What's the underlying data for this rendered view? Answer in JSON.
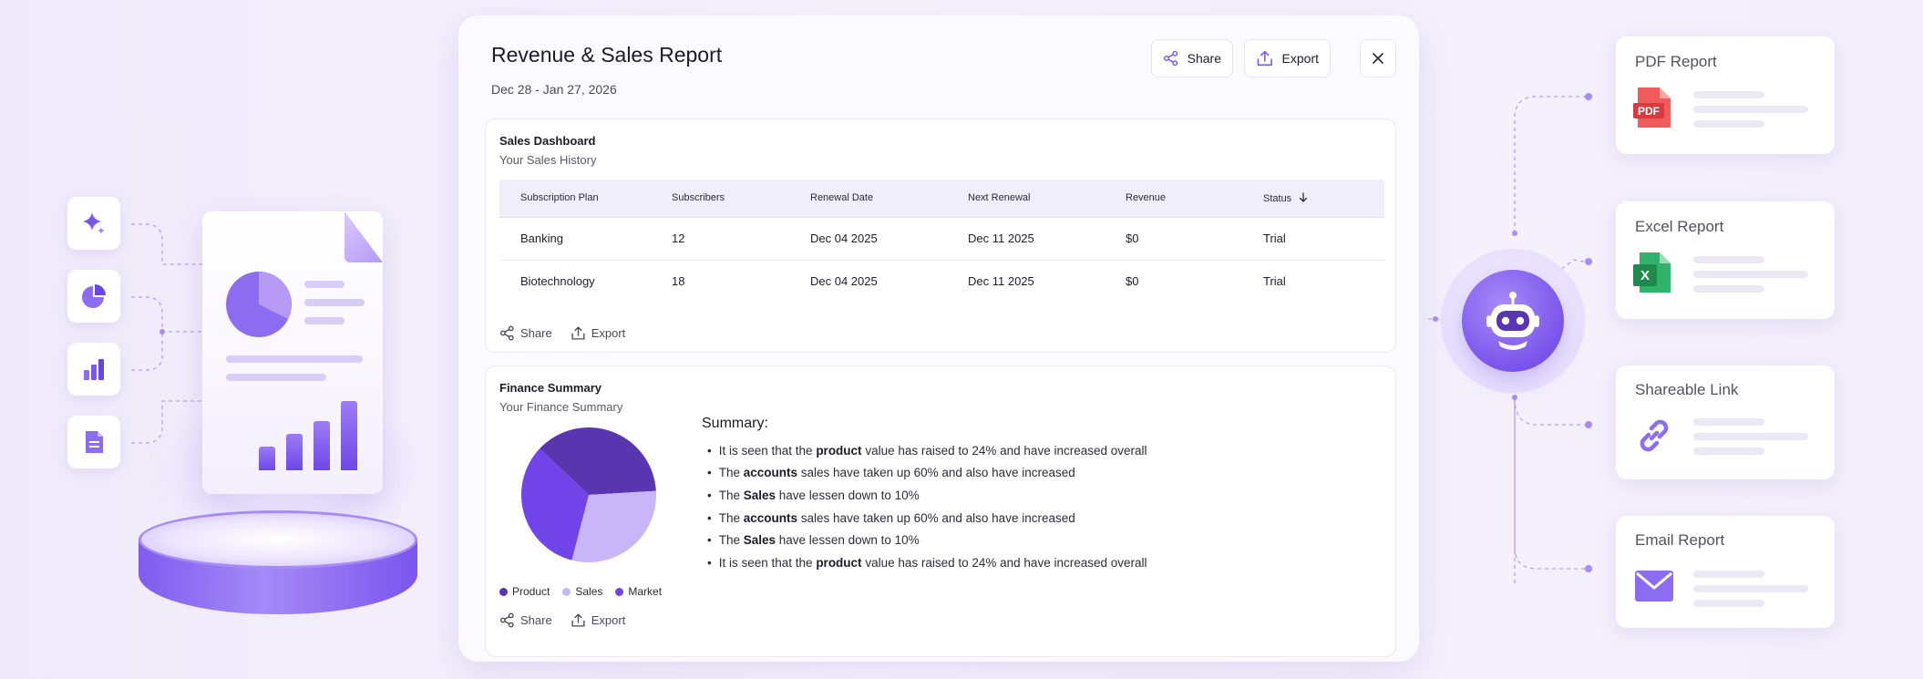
{
  "report": {
    "title": "Revenue & Sales Report",
    "date_range": "Dec 28 - Jan 27, 2026",
    "share_label": "Share",
    "export_label": "Export",
    "sales_dashboard": {
      "title": "Sales Dashboard",
      "subtitle": "Your Sales History",
      "columns": [
        "Subscription Plan",
        "Subscribers",
        "Renewal Date",
        "Next Renewal",
        "Revenue",
        "Status"
      ],
      "rows": [
        [
          "Banking",
          "12",
          "Dec 04 2025",
          "Dec 11 2025",
          "$0",
          "Trial"
        ],
        [
          "Biotechnology",
          "18",
          "Dec 04 2025",
          "Dec 11 2025",
          "$0",
          "Trial"
        ]
      ],
      "share_label": "Share",
      "export_label": "Export"
    },
    "finance_summary": {
      "title": "Finance Summary",
      "subtitle": "Your Finance Summary",
      "summary_heading": "Summary:",
      "bullets": [
        {
          "before": "It is seen that the ",
          "bold": "product",
          "after": " value has raised to 24% and have increased overall"
        },
        {
          "before": "The ",
          "bold": "accounts",
          "after": " sales have taken up 60% and also have increased"
        },
        {
          "before": "The ",
          "bold": "Sales",
          "after": " have lessen down to 10%"
        },
        {
          "before": "The ",
          "bold": "accounts",
          "after": " sales have taken up 60% and also have increased"
        },
        {
          "before": "The ",
          "bold": "Sales",
          "after": " have lessen down to 10%"
        },
        {
          "before": "It is seen that the ",
          "bold": "product",
          "after": " value has raised to 24% and have increased overall"
        }
      ],
      "share_label": "Share",
      "export_label": "Export"
    }
  },
  "chart_data": {
    "type": "pie",
    "slices": [
      {
        "name": "Product",
        "value": 37,
        "color": "#5a35b0"
      },
      {
        "name": "Sales",
        "value": 30,
        "color": "#c9b6f8"
      },
      {
        "name": "Market",
        "value": 33,
        "color": "#7044e8"
      }
    ]
  },
  "export_options": [
    {
      "title": "PDF Report",
      "icon": "pdf-file-icon",
      "badge": "PDF"
    },
    {
      "title": "Excel Report",
      "icon": "excel-file-icon",
      "badge": "X"
    },
    {
      "title": "Shareable Link",
      "icon": "link-icon"
    },
    {
      "title": "Email Report",
      "icon": "envelope-icon"
    }
  ],
  "left_icons": [
    "sparkle-icon",
    "pie-chart-icon",
    "bar-chart-icon",
    "document-icon"
  ],
  "colors": {
    "accent": "#7b55ee",
    "accent_dark": "#5a35b0",
    "accent_light": "#c9b6f8",
    "pdf_red": "#e5484d",
    "excel_green": "#1f9d55"
  }
}
